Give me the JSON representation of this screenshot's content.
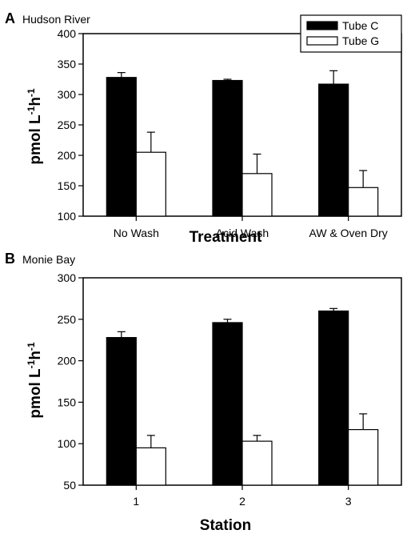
{
  "chart_data": [
    {
      "type": "bar",
      "panel_letter": "A",
      "title": "Hudson River",
      "xlabel": "Treatment",
      "ylabel_main": "pmol L",
      "ylabel_sup1": "-1",
      "ylabel_mid": "h",
      "ylabel_sup2": "-1",
      "ylim": [
        100,
        400
      ],
      "yticks": [
        "100",
        "150",
        "200",
        "250",
        "300",
        "350",
        "400"
      ],
      "categories": [
        "No Wash",
        "Acid Wash",
        "AW & Oven Dry"
      ],
      "series": [
        {
          "name": "Tube C",
          "color": "#000000",
          "values": [
            328,
            323,
            317
          ],
          "errors": [
            8,
            2,
            22
          ]
        },
        {
          "name": "Tube G",
          "color": "#ffffff",
          "values": [
            205,
            170,
            147
          ],
          "errors": [
            33,
            32,
            28
          ]
        }
      ],
      "legend_position": "top-right",
      "grid": false
    },
    {
      "type": "bar",
      "panel_letter": "B",
      "title": "Monie Bay",
      "xlabel": "Station",
      "ylabel_main": "pmol L",
      "ylabel_sup1": "-1",
      "ylabel_mid": "h",
      "ylabel_sup2": "-1",
      "ylim": [
        50,
        300
      ],
      "yticks": [
        "50",
        "100",
        "150",
        "200",
        "250",
        "300"
      ],
      "categories": [
        "1",
        "2",
        "3"
      ],
      "series": [
        {
          "name": "Tube C",
          "color": "#000000",
          "values": [
            228,
            246,
            260
          ],
          "errors": [
            7,
            4,
            3
          ]
        },
        {
          "name": "Tube G",
          "color": "#ffffff",
          "values": [
            95,
            103,
            117
          ],
          "errors": [
            15,
            7,
            19
          ]
        }
      ],
      "grid": false
    }
  ]
}
